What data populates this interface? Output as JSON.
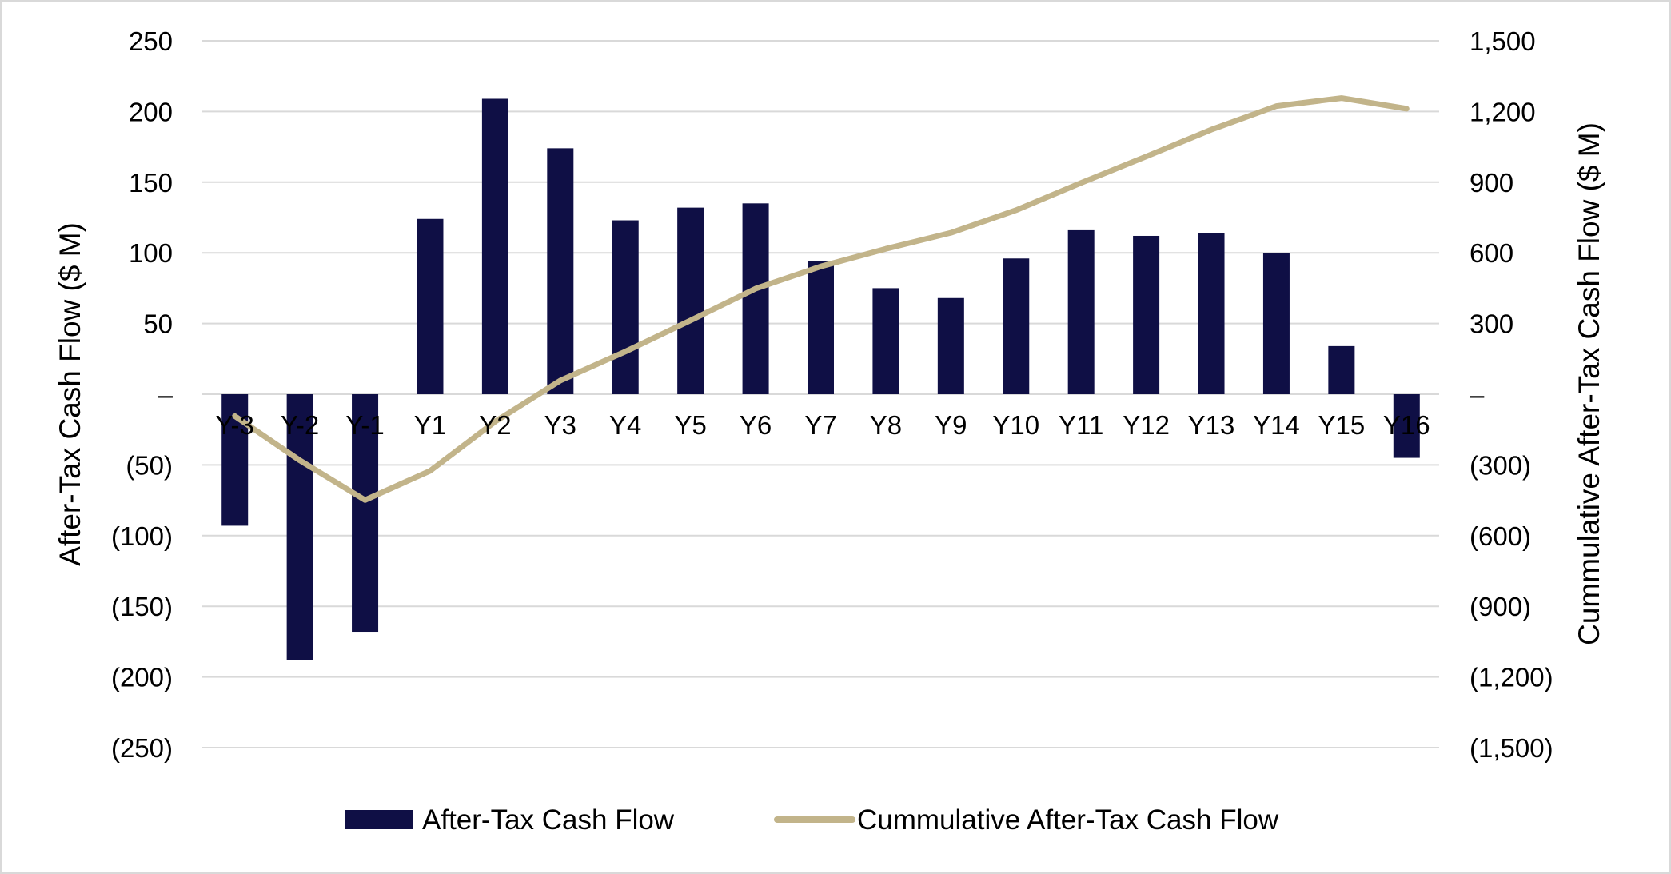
{
  "chart_data": {
    "type": "bar",
    "categories": [
      "Y-3",
      "Y-2",
      "Y-1",
      "Y1",
      "Y2",
      "Y3",
      "Y4",
      "Y5",
      "Y6",
      "Y7",
      "Y8",
      "Y9",
      "Y10",
      "Y11",
      "Y12",
      "Y13",
      "Y14",
      "Y15",
      "Y16"
    ],
    "series": [
      {
        "name": "After-Tax Cash Flow",
        "type": "bar",
        "axis": "left",
        "color": "#0f0f45",
        "values": [
          -93,
          -188,
          -168,
          124,
          209,
          174,
          123,
          132,
          135,
          94,
          75,
          68,
          96,
          116,
          112,
          114,
          100,
          34,
          -45
        ]
      },
      {
        "name": "Cummulative After-Tax Cash Flow",
        "type": "line",
        "axis": "right",
        "color": "#c2b48a",
        "values": [
          -93,
          -281,
          -449,
          -325,
          -116,
          58,
          181,
          313,
          448,
          542,
          617,
          685,
          781,
          897,
          1009,
          1123,
          1223,
          1257,
          1212
        ]
      }
    ],
    "y_left": {
      "label": "After-Tax Cash Flow ($ M)",
      "range": [
        -250,
        250
      ],
      "ticks": [
        250,
        200,
        150,
        100,
        50,
        0,
        -50,
        -100,
        -150,
        -200,
        -250
      ],
      "tick_labels": [
        "250",
        "200",
        "150",
        "100",
        "50",
        "–",
        "(50)",
        "(100)",
        "(150)",
        "(200)",
        "(250)"
      ]
    },
    "y_right": {
      "label": "Cummulative After-Tax Cash Flow ($ M)",
      "range": [
        -1500,
        1500
      ],
      "ticks": [
        1500,
        1200,
        900,
        600,
        300,
        0,
        -300,
        -600,
        -900,
        -1200,
        -1500
      ],
      "tick_labels": [
        "1,500",
        "1,200",
        "900",
        "600",
        "300",
        "–",
        "(300)",
        "(600)",
        "(900)",
        "(1,200)",
        "(1,500)"
      ]
    },
    "grid": true,
    "legend_position": "bottom"
  }
}
